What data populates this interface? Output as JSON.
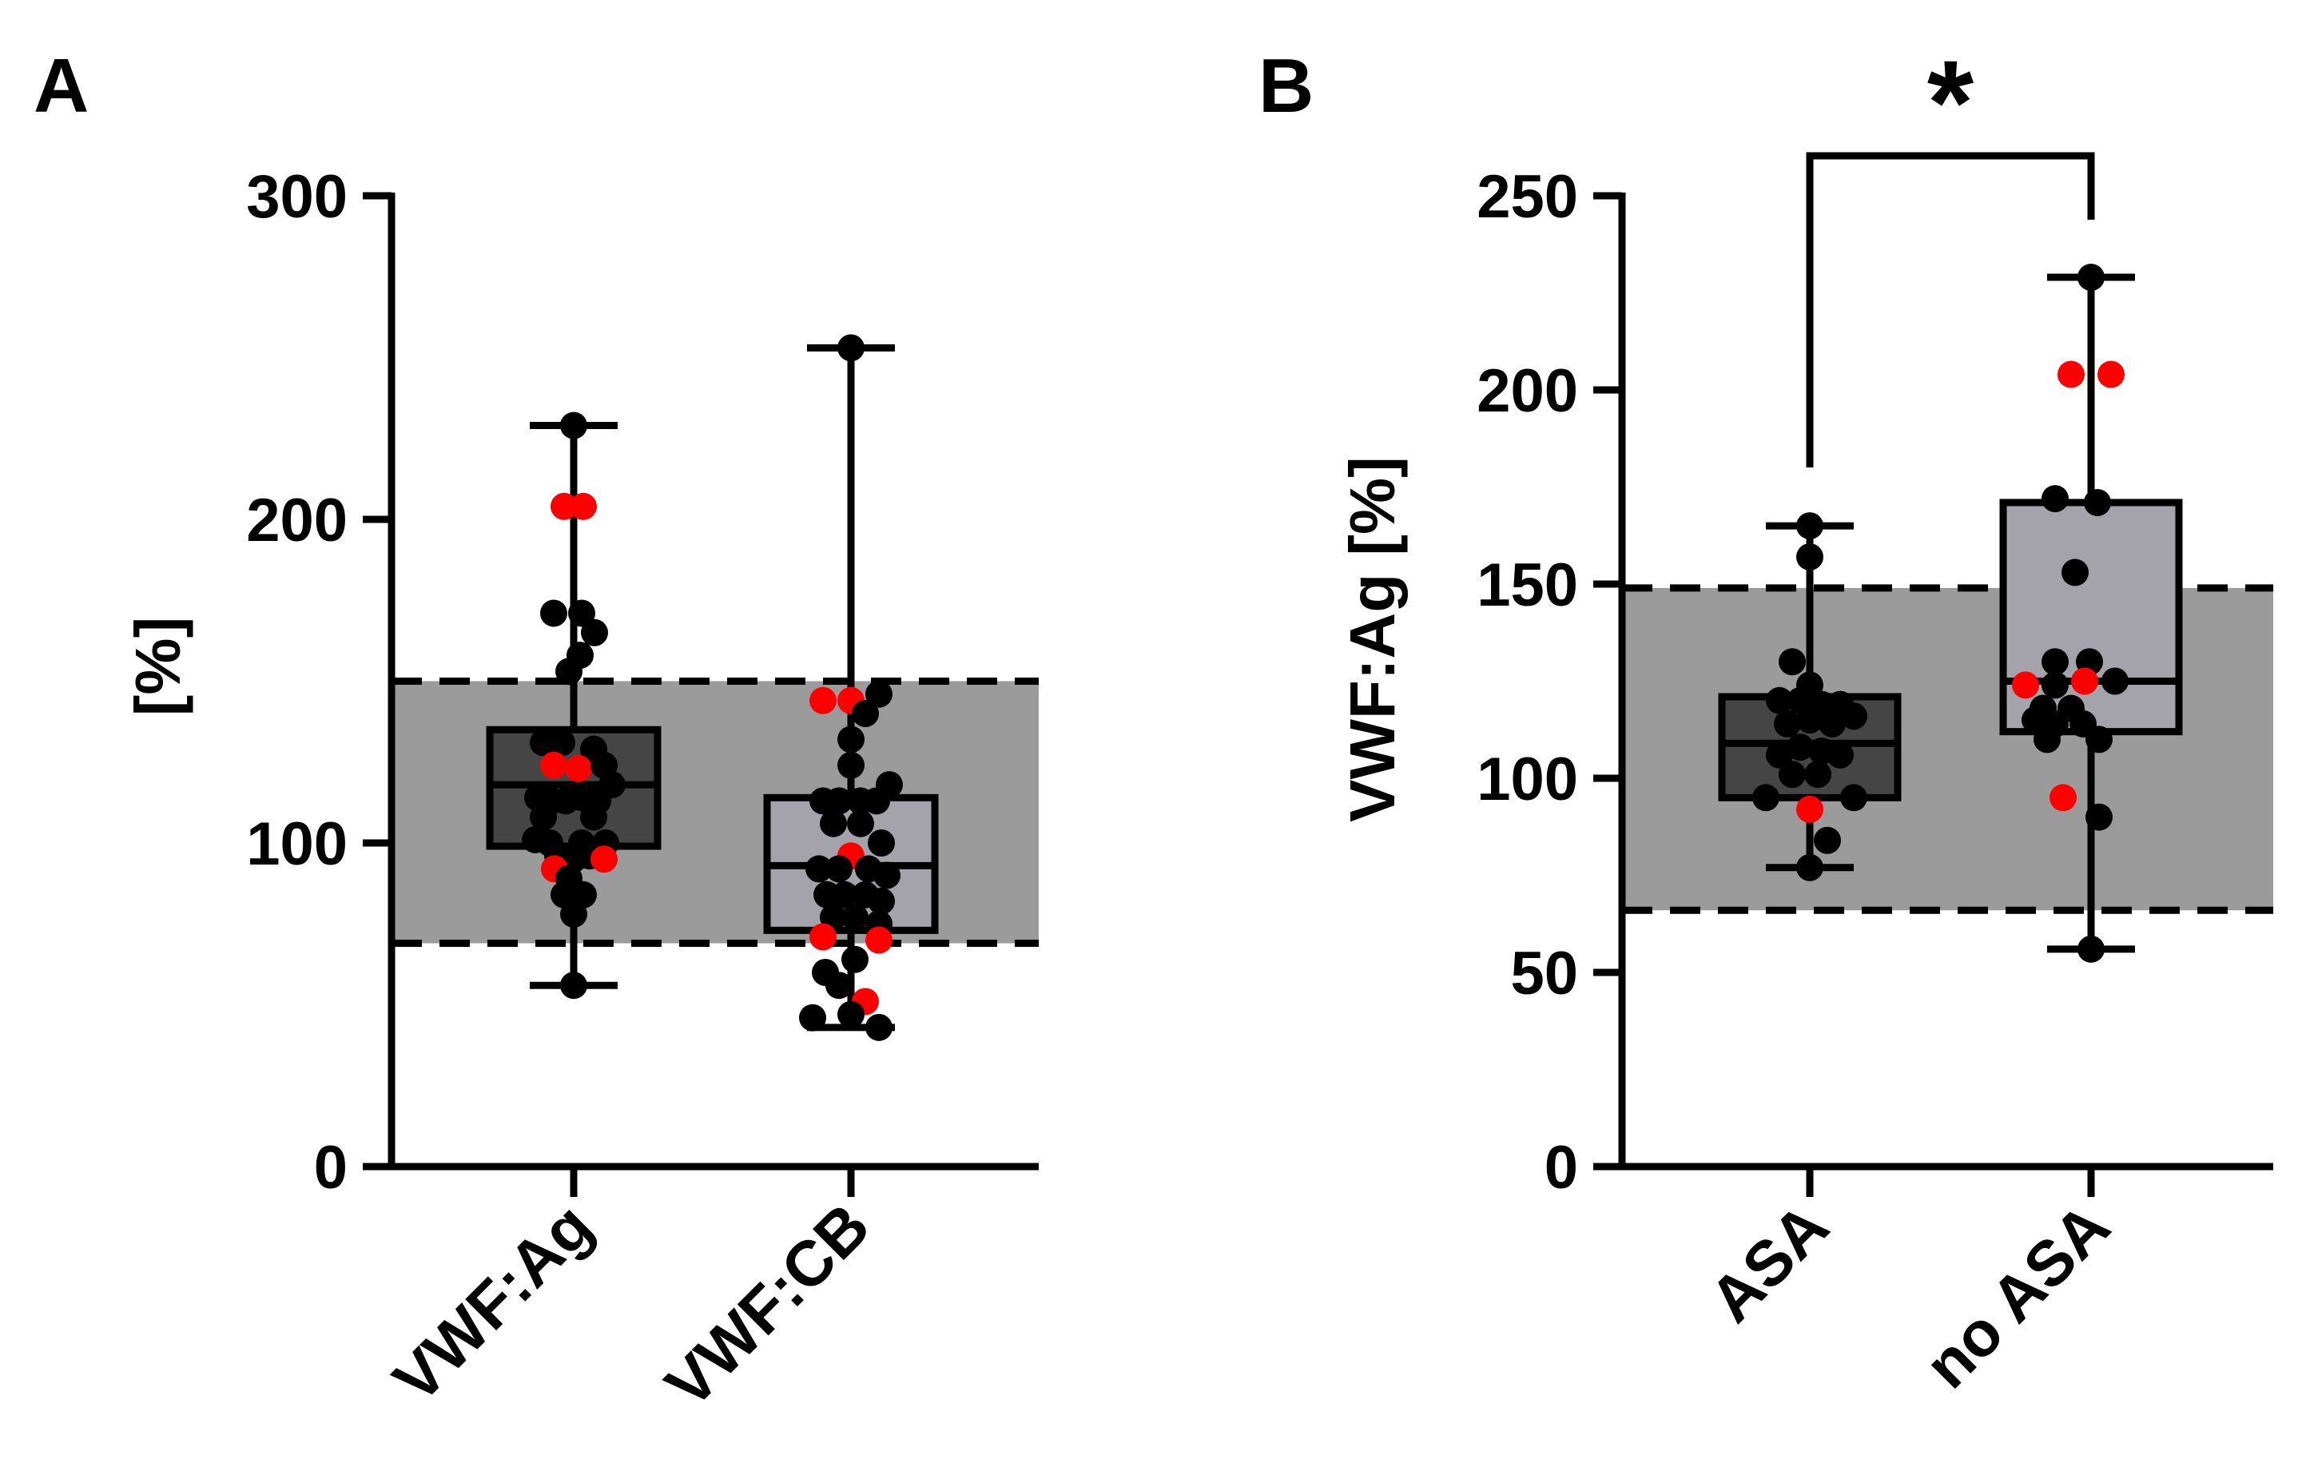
{
  "chart_data": [
    {
      "panel": "A",
      "type": "box",
      "ylabel": "[%]",
      "xlabel": "",
      "ylim": [
        0,
        300
      ],
      "yticks": [
        "0",
        "100",
        "200",
        "300"
      ],
      "reference_range": [
        69,
        150
      ],
      "categories": [
        "VWF:Ag",
        "VWF:CB"
      ],
      "series": [
        {
          "name": "VWF:Ag",
          "box_fill": "#454545",
          "min": 56,
          "q1": 99,
          "median": 118,
          "q3": 135,
          "max": 229,
          "points": [
            {
              "x": 0,
              "y": 229,
              "c": "black"
            },
            {
              "x": -12,
              "y": 204,
              "c": "red"
            },
            {
              "x": 12,
              "y": 204,
              "c": "red"
            },
            {
              "x": -25,
              "y": 171,
              "c": "black"
            },
            {
              "x": 10,
              "y": 171,
              "c": "black"
            },
            {
              "x": 26,
              "y": 165,
              "c": "black"
            },
            {
              "x": 8,
              "y": 158,
              "c": "black"
            },
            {
              "x": -6,
              "y": 153,
              "c": "black"
            },
            {
              "x": -38,
              "y": 131,
              "c": "black"
            },
            {
              "x": -15,
              "y": 131,
              "c": "black"
            },
            {
              "x": 25,
              "y": 129,
              "c": "black"
            },
            {
              "x": -25,
              "y": 124,
              "c": "red"
            },
            {
              "x": 6,
              "y": 123,
              "c": "red"
            },
            {
              "x": 38,
              "y": 124,
              "c": "black"
            },
            {
              "x": -45,
              "y": 114,
              "c": "black"
            },
            {
              "x": -28,
              "y": 113,
              "c": "black"
            },
            {
              "x": -10,
              "y": 113,
              "c": "black"
            },
            {
              "x": 10,
              "y": 114,
              "c": "black"
            },
            {
              "x": 30,
              "y": 113,
              "c": "black"
            },
            {
              "x": 48,
              "y": 118,
              "c": "black"
            },
            {
              "x": -38,
              "y": 108,
              "c": "black"
            },
            {
              "x": 25,
              "y": 108,
              "c": "black"
            },
            {
              "x": -48,
              "y": 101,
              "c": "black"
            },
            {
              "x": -30,
              "y": 100,
              "c": "black"
            },
            {
              "x": 10,
              "y": 100,
              "c": "black"
            },
            {
              "x": 40,
              "y": 100,
              "c": "black"
            },
            {
              "x": -20,
              "y": 96,
              "c": "black"
            },
            {
              "x": 0,
              "y": 95,
              "c": "black"
            },
            {
              "x": 20,
              "y": 96,
              "c": "black"
            },
            {
              "x": 38,
              "y": 95,
              "c": "red"
            },
            {
              "x": -24,
              "y": 92,
              "c": "red"
            },
            {
              "x": -6,
              "y": 89,
              "c": "black"
            },
            {
              "x": -12,
              "y": 84,
              "c": "black"
            },
            {
              "x": 12,
              "y": 84,
              "c": "black"
            },
            {
              "x": 0,
              "y": 78,
              "c": "black"
            },
            {
              "x": 0,
              "y": 56,
              "c": "black"
            }
          ]
        },
        {
          "name": "VWF:CB",
          "box_fill": "#a4a2aa",
          "min": 43,
          "q1": 73,
          "median": 93,
          "q3": 114,
          "max": 253,
          "points": [
            {
              "x": 0,
              "y": 253,
              "c": "black"
            },
            {
              "x": -35,
              "y": 144,
              "c": "red"
            },
            {
              "x": 0,
              "y": 144,
              "c": "red"
            },
            {
              "x": 35,
              "y": 146,
              "c": "black"
            },
            {
              "x": 18,
              "y": 140,
              "c": "black"
            },
            {
              "x": 0,
              "y": 132,
              "c": "black"
            },
            {
              "x": 0,
              "y": 124,
              "c": "black"
            },
            {
              "x": 48,
              "y": 118,
              "c": "black"
            },
            {
              "x": -35,
              "y": 113,
              "c": "black"
            },
            {
              "x": -15,
              "y": 113,
              "c": "black"
            },
            {
              "x": 12,
              "y": 113,
              "c": "black"
            },
            {
              "x": 32,
              "y": 113,
              "c": "black"
            },
            {
              "x": -22,
              "y": 106,
              "c": "black"
            },
            {
              "x": 12,
              "y": 106,
              "c": "black"
            },
            {
              "x": 38,
              "y": 100,
              "c": "black"
            },
            {
              "x": 0,
              "y": 96,
              "c": "red"
            },
            {
              "x": -40,
              "y": 92,
              "c": "black"
            },
            {
              "x": -15,
              "y": 92,
              "c": "black"
            },
            {
              "x": 22,
              "y": 92,
              "c": "black"
            },
            {
              "x": 45,
              "y": 90,
              "c": "black"
            },
            {
              "x": -30,
              "y": 84,
              "c": "black"
            },
            {
              "x": -8,
              "y": 84,
              "c": "black"
            },
            {
              "x": 18,
              "y": 84,
              "c": "black"
            },
            {
              "x": 38,
              "y": 82,
              "c": "black"
            },
            {
              "x": -22,
              "y": 77,
              "c": "black"
            },
            {
              "x": 5,
              "y": 77,
              "c": "black"
            },
            {
              "x": 35,
              "y": 75,
              "c": "black"
            },
            {
              "x": -35,
              "y": 71,
              "c": "red"
            },
            {
              "x": 35,
              "y": 70,
              "c": "red"
            },
            {
              "x": 5,
              "y": 64,
              "c": "black"
            },
            {
              "x": -32,
              "y": 60,
              "c": "black"
            },
            {
              "x": -15,
              "y": 56,
              "c": "black"
            },
            {
              "x": 18,
              "y": 51,
              "c": "red"
            },
            {
              "x": -48,
              "y": 46,
              "c": "black"
            },
            {
              "x": 0,
              "y": 47,
              "c": "black"
            },
            {
              "x": 35,
              "y": 43,
              "c": "black"
            }
          ]
        }
      ]
    },
    {
      "panel": "B",
      "type": "box",
      "ylabel": "VWF:Ag [%]",
      "xlabel": "",
      "ylim": [
        0,
        250
      ],
      "yticks": [
        "0",
        "50",
        "100",
        "150",
        "200",
        "250"
      ],
      "reference_range": [
        66,
        149
      ],
      "categories": [
        "ASA",
        "no ASA"
      ],
      "significance": {
        "between": [
          "ASA",
          "no ASA"
        ],
        "label": "*"
      },
      "series": [
        {
          "name": "ASA",
          "box_fill": "#454545",
          "min": 77,
          "q1": 95,
          "median": 109,
          "q3": 121,
          "max": 165,
          "points": [
            {
              "x": 0,
              "y": 165,
              "c": "black"
            },
            {
              "x": 0,
              "y": 157,
              "c": "black"
            },
            {
              "x": -22,
              "y": 130,
              "c": "black"
            },
            {
              "x": 0,
              "y": 124,
              "c": "black"
            },
            {
              "x": -38,
              "y": 120,
              "c": "black"
            },
            {
              "x": -12,
              "y": 120,
              "c": "black"
            },
            {
              "x": 15,
              "y": 119,
              "c": "black"
            },
            {
              "x": 38,
              "y": 119,
              "c": "black"
            },
            {
              "x": -28,
              "y": 114,
              "c": "black"
            },
            {
              "x": 0,
              "y": 115,
              "c": "black"
            },
            {
              "x": 28,
              "y": 114,
              "c": "black"
            },
            {
              "x": 55,
              "y": 116,
              "c": "black"
            },
            {
              "x": -38,
              "y": 106,
              "c": "black"
            },
            {
              "x": -12,
              "y": 108,
              "c": "black"
            },
            {
              "x": 15,
              "y": 107,
              "c": "black"
            },
            {
              "x": 38,
              "y": 106,
              "c": "black"
            },
            {
              "x": -22,
              "y": 101,
              "c": "black"
            },
            {
              "x": 10,
              "y": 101,
              "c": "black"
            },
            {
              "x": -55,
              "y": 95,
              "c": "black"
            },
            {
              "x": 55,
              "y": 95,
              "c": "black"
            },
            {
              "x": 0,
              "y": 92,
              "c": "red"
            },
            {
              "x": 22,
              "y": 84,
              "c": "black"
            },
            {
              "x": 0,
              "y": 77,
              "c": "black"
            }
          ]
        },
        {
          "name": "no ASA",
          "box_fill": "#a4a2aa",
          "min": 56,
          "q1": 112,
          "median": 125,
          "q3": 171,
          "max": 229,
          "points": [
            {
              "x": 0,
              "y": 229,
              "c": "black"
            },
            {
              "x": -25,
              "y": 204,
              "c": "red"
            },
            {
              "x": 25,
              "y": 204,
              "c": "red"
            },
            {
              "x": -45,
              "y": 172,
              "c": "black"
            },
            {
              "x": 8,
              "y": 171,
              "c": "black"
            },
            {
              "x": -20,
              "y": 153,
              "c": "black"
            },
            {
              "x": -45,
              "y": 130,
              "c": "black"
            },
            {
              "x": -2,
              "y": 130,
              "c": "black"
            },
            {
              "x": -82,
              "y": 124,
              "c": "red"
            },
            {
              "x": -45,
              "y": 124,
              "c": "black"
            },
            {
              "x": -8,
              "y": 125,
              "c": "red"
            },
            {
              "x": 30,
              "y": 125,
              "c": "black"
            },
            {
              "x": -60,
              "y": 118,
              "c": "black"
            },
            {
              "x": -25,
              "y": 118,
              "c": "black"
            },
            {
              "x": -70,
              "y": 115,
              "c": "black"
            },
            {
              "x": -45,
              "y": 114,
              "c": "black"
            },
            {
              "x": -10,
              "y": 114,
              "c": "black"
            },
            {
              "x": -55,
              "y": 110,
              "c": "black"
            },
            {
              "x": 10,
              "y": 110,
              "c": "black"
            },
            {
              "x": -35,
              "y": 95,
              "c": "red"
            },
            {
              "x": 10,
              "y": 90,
              "c": "black"
            },
            {
              "x": 0,
              "y": 56,
              "c": "black"
            }
          ]
        }
      ]
    }
  ]
}
